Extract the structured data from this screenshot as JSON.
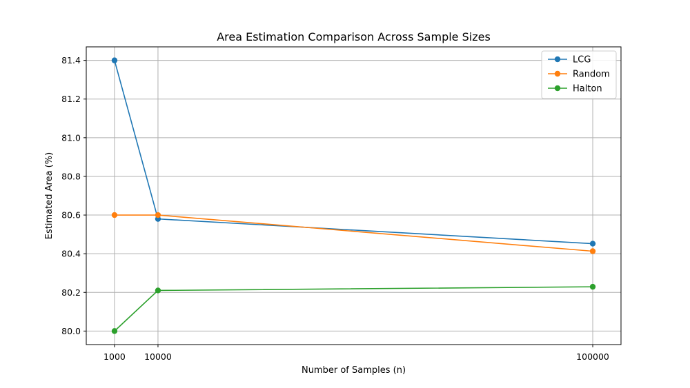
{
  "chart_data": {
    "type": "line",
    "title": "Area Estimation Comparison Across Sample Sizes",
    "xlabel": "Number of Samples (n)",
    "ylabel": "Estimated Area (%)",
    "x": [
      1000,
      10000,
      100000
    ],
    "x_tick_labels": [
      "1000",
      "10000",
      "100000"
    ],
    "y_ticks": [
      80.0,
      80.2,
      80.4,
      80.6,
      80.8,
      81.0,
      81.2,
      81.4
    ],
    "y_tick_labels": [
      "80.0",
      "80.2",
      "80.4",
      "80.6",
      "80.8",
      "81.0",
      "81.2",
      "81.4"
    ],
    "xlim": [
      -4850,
      105850
    ],
    "ylim": [
      79.93,
      81.47
    ],
    "grid": true,
    "legend_position": "top-right",
    "series": [
      {
        "name": "LCG",
        "color": "#1f77b4",
        "values": [
          81.4,
          80.58,
          80.452
        ]
      },
      {
        "name": "Random",
        "color": "#ff7f0e",
        "values": [
          80.6,
          80.6,
          80.413
        ]
      },
      {
        "name": "Halton",
        "color": "#2ca02c",
        "values": [
          80.0,
          80.21,
          80.229
        ]
      }
    ]
  }
}
